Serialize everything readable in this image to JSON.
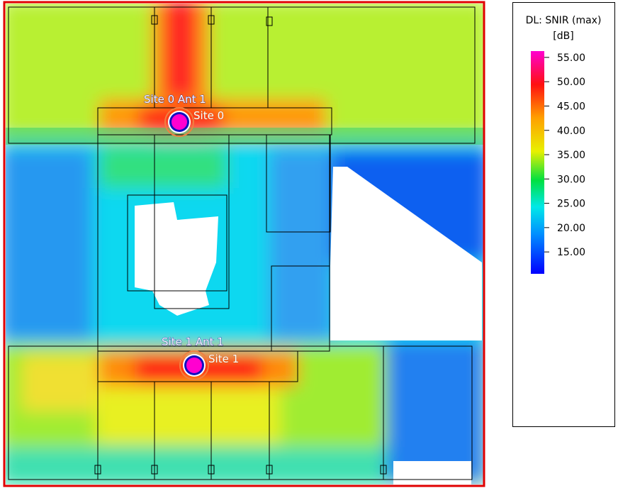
{
  "legend": {
    "title": "DL: SNIR (max)",
    "unit": "[dB]",
    "lim": [
      10.5,
      56.3
    ],
    "ticks": [
      {
        "value": 55,
        "label": "55.00"
      },
      {
        "value": 50,
        "label": "50.00"
      },
      {
        "value": 45,
        "label": "45.00"
      },
      {
        "value": 40,
        "label": "40.00"
      },
      {
        "value": 35,
        "label": "35.00"
      },
      {
        "value": 30,
        "label": "30.00"
      },
      {
        "value": 25,
        "label": "25.00"
      },
      {
        "value": 20,
        "label": "20.00"
      },
      {
        "value": 15,
        "label": "15.00"
      }
    ]
  },
  "sites": [
    {
      "antenna_label": "Site 0 Ant 1",
      "site_label": "Site 0"
    },
    {
      "antenna_label": "Site 1 Ant 1",
      "site_label": "Site 1"
    }
  ]
}
